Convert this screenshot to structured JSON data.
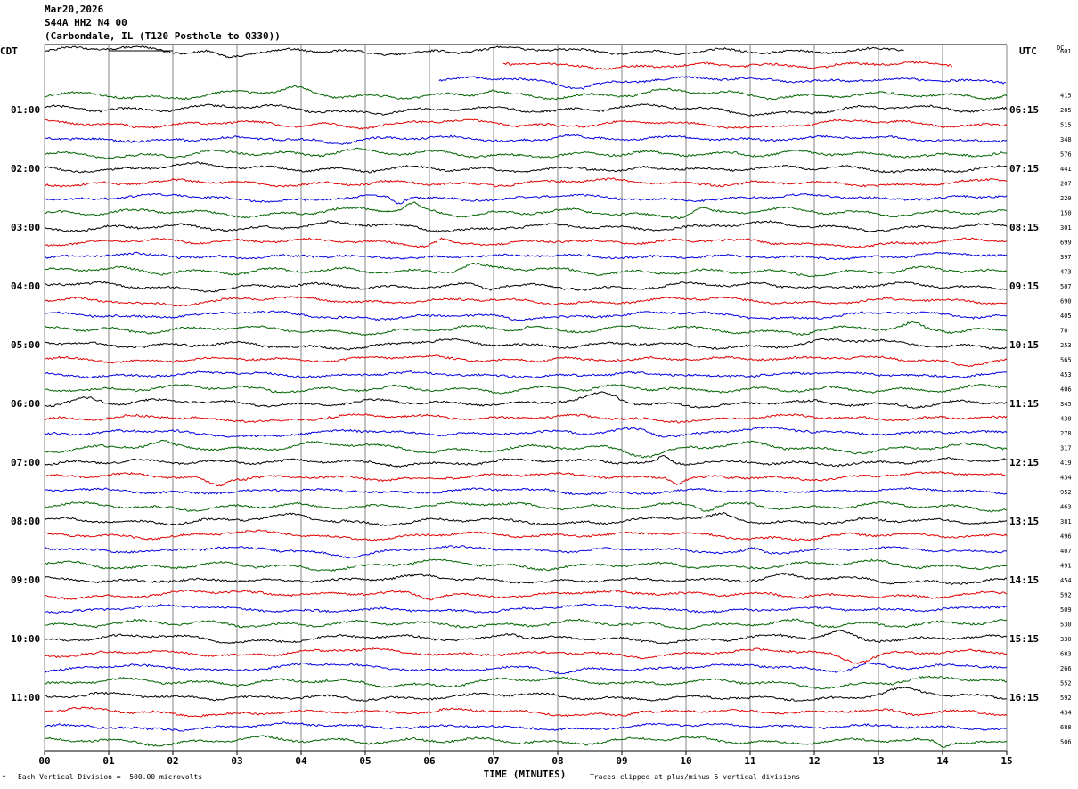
{
  "header": {
    "date": "Mar20,2026",
    "station": "S44A HH2 N4 00",
    "location": "(Carbondale, IL (T120 Posthole to Q330))"
  },
  "left_tz": "CDT",
  "right_tz": "UTC",
  "dc_label": "DC",
  "footer": {
    "scale": "Each Vertical Division =  500.00 microvolts",
    "clip": "Traces clipped at plus/minus 5 vertical divisions",
    "corner_mark": "^"
  },
  "colors": {
    "black": "#000000",
    "red": "#e00000",
    "blue": "#0000e0",
    "green": "#006400"
  },
  "chart_data": {
    "type": "line",
    "title": "S44A HH2 N4 00",
    "xlabel": "TIME (MINUTES)",
    "xlim": [
      0,
      15
    ],
    "x_ticks": [
      "00",
      "01",
      "02",
      "03",
      "04",
      "05",
      "06",
      "07",
      "08",
      "09",
      "10",
      "11",
      "12",
      "13",
      "14",
      "15"
    ],
    "left_hour_labels": [
      {
        "row": 4,
        "label": "01:00"
      },
      {
        "row": 8,
        "label": "02:00"
      },
      {
        "row": 12,
        "label": "03:00"
      },
      {
        "row": 16,
        "label": "04:00"
      },
      {
        "row": 20,
        "label": "05:00"
      },
      {
        "row": 24,
        "label": "06:00"
      },
      {
        "row": 28,
        "label": "07:00"
      },
      {
        "row": 32,
        "label": "08:00"
      },
      {
        "row": 36,
        "label": "09:00"
      },
      {
        "row": 40,
        "label": "10:00"
      },
      {
        "row": 44,
        "label": "11:00"
      }
    ],
    "right_hour_labels": [
      {
        "row": 4,
        "label": "06:15"
      },
      {
        "row": 8,
        "label": "07:15"
      },
      {
        "row": 12,
        "label": "08:15"
      },
      {
        "row": 16,
        "label": "09:15"
      },
      {
        "row": 20,
        "label": "10:15"
      },
      {
        "row": 24,
        "label": "11:15"
      },
      {
        "row": 28,
        "label": "12:15"
      },
      {
        "row": 32,
        "label": "13:15"
      },
      {
        "row": 36,
        "label": "14:15"
      },
      {
        "row": 40,
        "label": "15:15"
      },
      {
        "row": 44,
        "label": "16:15"
      }
    ],
    "color_cycle": [
      "black",
      "red",
      "blue",
      "green"
    ],
    "traces": [
      {
        "row": 0,
        "dc": "601",
        "x_start": 0,
        "x_end": 13.4
      },
      {
        "row": 1,
        "dc": "",
        "x_start": 7.15,
        "x_end": 14.15
      },
      {
        "row": 2,
        "dc": "",
        "x_start": 6.15,
        "x_end": 15
      },
      {
        "row": 3,
        "dc": "415",
        "x_start": 0,
        "x_end": 15
      },
      {
        "row": 4,
        "dc": "205",
        "x_start": 0,
        "x_end": 15
      },
      {
        "row": 5,
        "dc": "515",
        "x_start": 0,
        "x_end": 15
      },
      {
        "row": 6,
        "dc": "348",
        "x_start": 0,
        "x_end": 15
      },
      {
        "row": 7,
        "dc": "576",
        "x_start": 0,
        "x_end": 15
      },
      {
        "row": 8,
        "dc": "441",
        "x_start": 0,
        "x_end": 15
      },
      {
        "row": 9,
        "dc": "207",
        "x_start": 0,
        "x_end": 15
      },
      {
        "row": 10,
        "dc": "220",
        "x_start": 0,
        "x_end": 15
      },
      {
        "row": 11,
        "dc": "150",
        "x_start": 0,
        "x_end": 15
      },
      {
        "row": 12,
        "dc": "301",
        "x_start": 0,
        "x_end": 15
      },
      {
        "row": 13,
        "dc": "699",
        "x_start": 0,
        "x_end": 15
      },
      {
        "row": 14,
        "dc": "397",
        "x_start": 0,
        "x_end": 15
      },
      {
        "row": 15,
        "dc": "473",
        "x_start": 0,
        "x_end": 15
      },
      {
        "row": 16,
        "dc": "507",
        "x_start": 0,
        "x_end": 15
      },
      {
        "row": 17,
        "dc": "690",
        "x_start": 0,
        "x_end": 15
      },
      {
        "row": 18,
        "dc": "405",
        "x_start": 0,
        "x_end": 15
      },
      {
        "row": 19,
        "dc": "70",
        "x_start": 0,
        "x_end": 15
      },
      {
        "row": 20,
        "dc": "253",
        "x_start": 0,
        "x_end": 15
      },
      {
        "row": 21,
        "dc": "565",
        "x_start": 0,
        "x_end": 15
      },
      {
        "row": 22,
        "dc": "453",
        "x_start": 0,
        "x_end": 15
      },
      {
        "row": 23,
        "dc": "406",
        "x_start": 0,
        "x_end": 15
      },
      {
        "row": 24,
        "dc": "345",
        "x_start": 0,
        "x_end": 15
      },
      {
        "row": 25,
        "dc": "430",
        "x_start": 0,
        "x_end": 15
      },
      {
        "row": 26,
        "dc": "278",
        "x_start": 0,
        "x_end": 15
      },
      {
        "row": 27,
        "dc": "317",
        "x_start": 0,
        "x_end": 15
      },
      {
        "row": 28,
        "dc": "419",
        "x_start": 0,
        "x_end": 15
      },
      {
        "row": 29,
        "dc": "434",
        "x_start": 0,
        "x_end": 15
      },
      {
        "row": 30,
        "dc": "952",
        "x_start": 0,
        "x_end": 15
      },
      {
        "row": 31,
        "dc": "463",
        "x_start": 0,
        "x_end": 15
      },
      {
        "row": 32,
        "dc": "381",
        "x_start": 0,
        "x_end": 15
      },
      {
        "row": 33,
        "dc": "496",
        "x_start": 0,
        "x_end": 15
      },
      {
        "row": 34,
        "dc": "407",
        "x_start": 0,
        "x_end": 15
      },
      {
        "row": 35,
        "dc": "491",
        "x_start": 0,
        "x_end": 15
      },
      {
        "row": 36,
        "dc": "454",
        "x_start": 0,
        "x_end": 15
      },
      {
        "row": 37,
        "dc": "592",
        "x_start": 0,
        "x_end": 15
      },
      {
        "row": 38,
        "dc": "509",
        "x_start": 0,
        "x_end": 15
      },
      {
        "row": 39,
        "dc": "530",
        "x_start": 0,
        "x_end": 15
      },
      {
        "row": 40,
        "dc": "330",
        "x_start": 0,
        "x_end": 15
      },
      {
        "row": 41,
        "dc": "683",
        "x_start": 0,
        "x_end": 15
      },
      {
        "row": 42,
        "dc": "266",
        "x_start": 0,
        "x_end": 15
      },
      {
        "row": 43,
        "dc": "552",
        "x_start": 0,
        "x_end": 15
      },
      {
        "row": 44,
        "dc": "592",
        "x_start": 0,
        "x_end": 15
      },
      {
        "row": 45,
        "dc": "434",
        "x_start": 0,
        "x_end": 15
      },
      {
        "row": 46,
        "dc": "688",
        "x_start": 0,
        "x_end": 15
      },
      {
        "row": 47,
        "dc": "506",
        "x_start": 0,
        "x_end": 15
      }
    ]
  }
}
